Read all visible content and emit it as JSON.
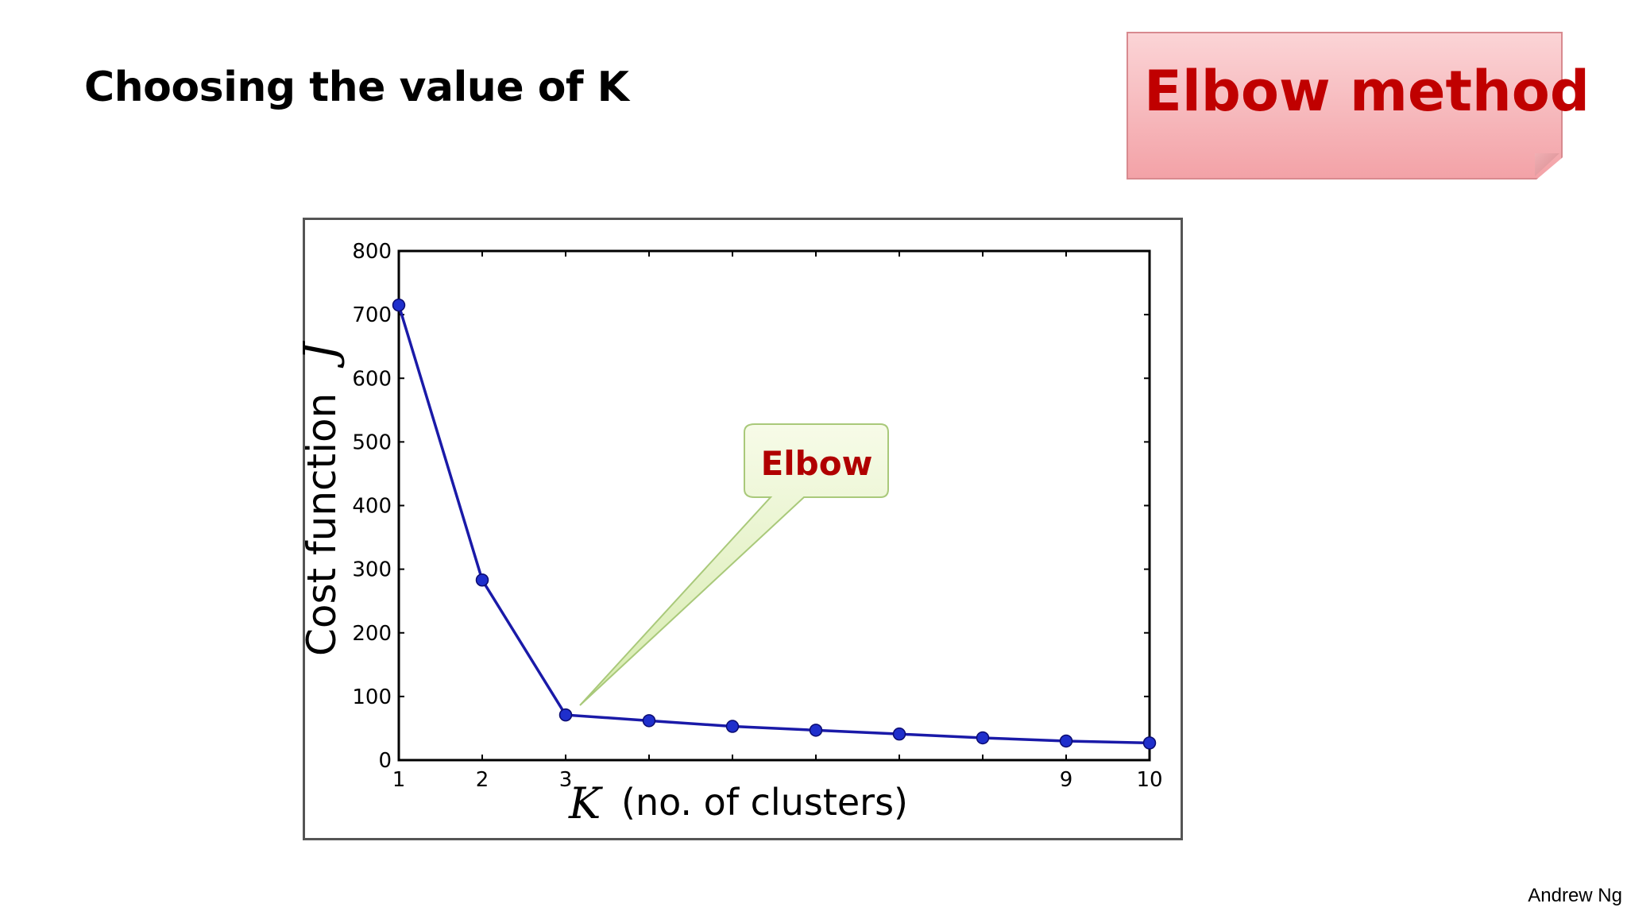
{
  "slide": {
    "title": "Choosing the value of K",
    "callout": "Elbow method",
    "footer": "Andrew Ng"
  },
  "annotation": {
    "label": "Elbow",
    "points_to_k": 3
  },
  "colors": {
    "series": "#1a1aa8",
    "marker": "#1f2fcc",
    "callout_text": "#c00000",
    "annotation_text": "#b00000"
  },
  "chart_data": {
    "type": "line",
    "title": "",
    "ylabel_text": "Cost function",
    "ylabel_symbol": "J",
    "xlabel_symbol": "K",
    "xlabel_text": "(no. of clusters)",
    "xlim": [
      1,
      10
    ],
    "ylim": [
      0,
      800
    ],
    "xticks": [
      1,
      2,
      3,
      9,
      10
    ],
    "yticks": [
      0,
      100,
      200,
      300,
      400,
      500,
      600,
      700,
      800
    ],
    "grid": false,
    "series": [
      {
        "x": [
          1,
          2,
          3,
          4,
          5,
          6,
          7,
          8,
          9,
          10
        ],
        "y": [
          715,
          283,
          71,
          62,
          53,
          47,
          41,
          35,
          30,
          27
        ]
      }
    ]
  }
}
